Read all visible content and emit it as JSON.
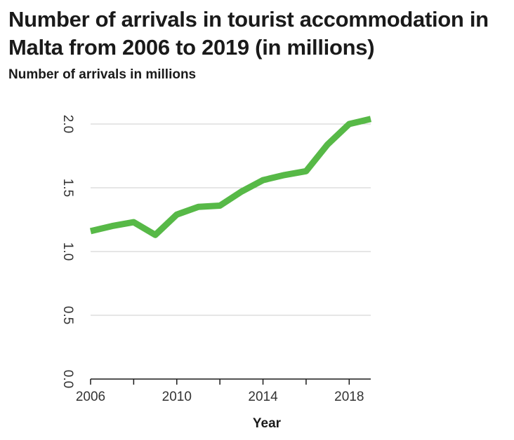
{
  "chart_data": {
    "type": "line",
    "title": "Number of arrivals in tourist accommodation in Malta from 2006 to 2019 (in millions)",
    "ylabel": "Number of arrivals in millions",
    "xlabel": "Year",
    "x": [
      2006,
      2007,
      2008,
      2009,
      2010,
      2011,
      2012,
      2013,
      2014,
      2015,
      2016,
      2017,
      2018,
      2019
    ],
    "values": [
      1.16,
      1.2,
      1.23,
      1.13,
      1.29,
      1.35,
      1.36,
      1.47,
      1.56,
      1.6,
      1.63,
      1.84,
      2.0,
      2.04
    ],
    "xlim": [
      2006,
      2019
    ],
    "ylim": [
      0,
      2.0
    ],
    "yticks": [
      "0.0",
      "0.5",
      "1.0",
      "1.5",
      "2.0"
    ],
    "xticks": [
      "2006",
      "2010",
      "2014",
      "2018"
    ],
    "xtick_values": [
      2006,
      2010,
      2014,
      2018
    ],
    "grid": "horizontal",
    "color": "#57b947"
  }
}
